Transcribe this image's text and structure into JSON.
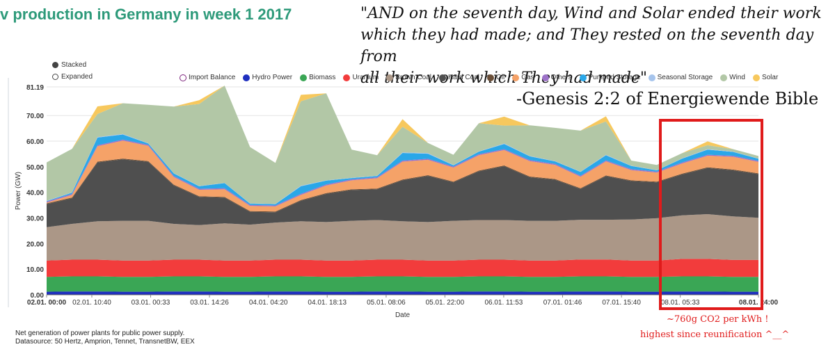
{
  "title": "v production in Germany in week 1 2017",
  "quote": {
    "lines": [
      "\"AND on the seventh day, Wind and Solar ended their work",
      "which they had made; and They rested on the seventh day from",
      "all their work which They had made\""
    ],
    "attribution": "-Genesis 2:2 of Energiewende Bible"
  },
  "display_options": [
    "Stacked",
    "Expanded"
  ],
  "annotation": {
    "line1": "~760g CO2 per kWh !",
    "line2": "highest since reunification ^__^"
  },
  "footer": {
    "line1": "Net generation of power plants for public power supply.",
    "line2": "Datasource: 50 Hertz, Amprion, Tennet, TransnetBW, EEX"
  },
  "chart_data": {
    "type": "area",
    "stacked": true,
    "title": "",
    "xlabel": "Date",
    "ylabel": "Power (GW)",
    "ylim": [
      0,
      81.19
    ],
    "y_ticks": [
      "0.00",
      "10.00",
      "20.00",
      "30.00",
      "40.00",
      "50.00",
      "60.00",
      "70.00",
      "81.19"
    ],
    "x_ticks": [
      {
        "h": 0,
        "label": "02.01. 00:00",
        "bold": true
      },
      {
        "h": 10.67,
        "label": "02.01. 10:40",
        "bold": false
      },
      {
        "h": 24.55,
        "label": "03.01. 00:33",
        "bold": false
      },
      {
        "h": 38.43,
        "label": "03.01. 14:26",
        "bold": false
      },
      {
        "h": 52.33,
        "label": "04.01. 04:20",
        "bold": false
      },
      {
        "h": 66.22,
        "label": "04.01. 18:13",
        "bold": false
      },
      {
        "h": 80.13,
        "label": "05.01. 08:06",
        "bold": false
      },
      {
        "h": 94.0,
        "label": "05.01. 22:00",
        "bold": false
      },
      {
        "h": 107.88,
        "label": "06.01. 11:53",
        "bold": false
      },
      {
        "h": 121.77,
        "label": "07.01. 01:46",
        "bold": false
      },
      {
        "h": 135.67,
        "label": "07.01. 15:40",
        "bold": false
      },
      {
        "h": 149.55,
        "label": "08.01. 05:33",
        "bold": false
      },
      {
        "h": 168,
        "label": "08.01. 24:00",
        "bold": true
      }
    ],
    "x_hours": [
      0,
      6,
      12,
      18,
      24,
      30,
      36,
      42,
      48,
      54,
      60,
      66,
      72,
      78,
      84,
      90,
      96,
      102,
      108,
      114,
      120,
      126,
      132,
      138,
      144,
      150,
      156,
      162,
      168
    ],
    "series": [
      {
        "name": "Import Balance",
        "color": "#7a1f7a",
        "values": [
          0,
          0,
          0,
          0,
          0,
          0,
          0,
          0,
          0,
          0,
          0,
          0,
          0,
          0,
          0,
          0,
          0,
          0,
          0,
          0,
          0,
          0,
          0,
          0,
          0,
          0,
          0,
          0,
          0
        ]
      },
      {
        "name": "Hydro Power",
        "color": "#1f2fbf",
        "values": [
          1.2,
          1.3,
          1.3,
          1.2,
          1.2,
          1.3,
          1.3,
          1.2,
          1.2,
          1.3,
          1.3,
          1.2,
          1.2,
          1.3,
          1.3,
          1.2,
          1.2,
          1.3,
          1.3,
          1.2,
          1.2,
          1.3,
          1.3,
          1.2,
          1.2,
          1.3,
          1.3,
          1.2,
          1.2
        ]
      },
      {
        "name": "Biomass",
        "color": "#3aa655",
        "values": [
          5.8,
          5.9,
          5.9,
          5.8,
          5.8,
          5.9,
          5.9,
          5.8,
          5.8,
          5.9,
          5.9,
          5.8,
          5.8,
          5.9,
          5.9,
          5.8,
          5.8,
          5.9,
          5.9,
          5.8,
          5.8,
          5.9,
          5.9,
          5.8,
          5.8,
          5.9,
          5.9,
          5.8,
          5.8
        ]
      },
      {
        "name": "Uranium",
        "color": "#f23c3c",
        "values": [
          6.4,
          6.5,
          6.5,
          6.4,
          6.4,
          6.5,
          6.5,
          6.4,
          6.4,
          6.5,
          6.5,
          6.4,
          6.4,
          6.5,
          6.5,
          6.4,
          6.4,
          6.5,
          6.5,
          6.4,
          6.4,
          6.6,
          6.6,
          6.4,
          6.4,
          6.8,
          6.8,
          6.6,
          6.6
        ]
      },
      {
        "name": "Brown Coal",
        "color": "#ab9787",
        "values": [
          13,
          14,
          15,
          15.5,
          15.5,
          14,
          13.5,
          14.5,
          14,
          14.5,
          15,
          15,
          15.5,
          15.5,
          15,
          15,
          15.5,
          15.5,
          15.5,
          15.5,
          15.5,
          15.5,
          15.5,
          16,
          16.5,
          17,
          17.5,
          17,
          16.5
        ]
      },
      {
        "name": "Hard Coal",
        "color": "#4f4f4f",
        "values": [
          9,
          10,
          23,
          24,
          23,
          15,
          11,
          10,
          5,
          4,
          8,
          11,
          12,
          12,
          16,
          18,
          15,
          19,
          21,
          17,
          16,
          12,
          17,
          15,
          14,
          16,
          18,
          18,
          17
        ]
      },
      {
        "name": "Oil",
        "color": "#6b4f38",
        "values": [
          0.3,
          0.3,
          0.3,
          0.3,
          0.3,
          0.3,
          0.3,
          0.3,
          0.3,
          0.3,
          0.3,
          0.3,
          0.3,
          0.3,
          0.3,
          0.3,
          0.3,
          0.3,
          0.3,
          0.3,
          0.3,
          0.3,
          0.3,
          0.3,
          0.3,
          0.3,
          0.3,
          0.3,
          0.3
        ]
      },
      {
        "name": "Gas",
        "color": "#f5a268",
        "values": [
          0.3,
          1,
          6,
          7,
          6,
          3,
          2.5,
          3,
          2,
          2,
          2,
          3,
          3.5,
          4,
          7,
          6,
          5.5,
          6,
          6,
          6,
          5.5,
          4.5,
          5.5,
          4,
          3.5,
          4,
          4.5,
          5,
          4.5
        ]
      },
      {
        "name": "Others",
        "color": "#9d72c9",
        "values": [
          0.4,
          0.4,
          0.4,
          0.4,
          0.4,
          0.4,
          0.4,
          0.4,
          0.4,
          0.4,
          0.4,
          0.4,
          0.4,
          0.4,
          0.4,
          0.4,
          0.4,
          0.4,
          0.4,
          0.4,
          0.4,
          0.4,
          0.4,
          0.4,
          0.4,
          0.4,
          0.4,
          0.4,
          0.4
        ]
      },
      {
        "name": "Pumped Storage",
        "color": "#2aa7e8",
        "values": [
          0.2,
          0.5,
          3,
          2,
          0.5,
          1,
          1,
          2,
          0.5,
          0.5,
          3,
          1.5,
          0.5,
          0.5,
          3,
          2,
          0.5,
          1,
          2,
          1.5,
          1,
          1.5,
          2,
          1.2,
          0.5,
          1.5,
          2,
          1.5,
          0.8
        ]
      },
      {
        "name": "Seasonal Storage",
        "color": "#a6c4ec",
        "values": [
          0.1,
          0.1,
          0.2,
          0.2,
          0.1,
          0.1,
          0.1,
          0.1,
          0.1,
          0.1,
          0.2,
          0.1,
          0.1,
          0.1,
          0.2,
          0.2,
          0.1,
          0.1,
          0.2,
          0.1,
          0.1,
          0.1,
          0.2,
          0.1,
          0.1,
          0.1,
          0.2,
          0.1,
          0.1
        ]
      },
      {
        "name": "Wind",
        "color": "#b2c7a6",
        "values": [
          15,
          17,
          9,
          12,
          15,
          26,
          32,
          38,
          22,
          16,
          33,
          34,
          11,
          8,
          10,
          4,
          4,
          11,
          7,
          12,
          13,
          16,
          13,
          2,
          2,
          2,
          1.5,
          1,
          1
        ]
      },
      {
        "name": "Solar",
        "color": "#f7c85d",
        "values": [
          0,
          0,
          3,
          0,
          0,
          0,
          1.5,
          0,
          0,
          0,
          2.5,
          0,
          0,
          0,
          3,
          0,
          0,
          0,
          3.5,
          0,
          0,
          0,
          2,
          0,
          0,
          0,
          1.5,
          0,
          0
        ]
      }
    ]
  }
}
